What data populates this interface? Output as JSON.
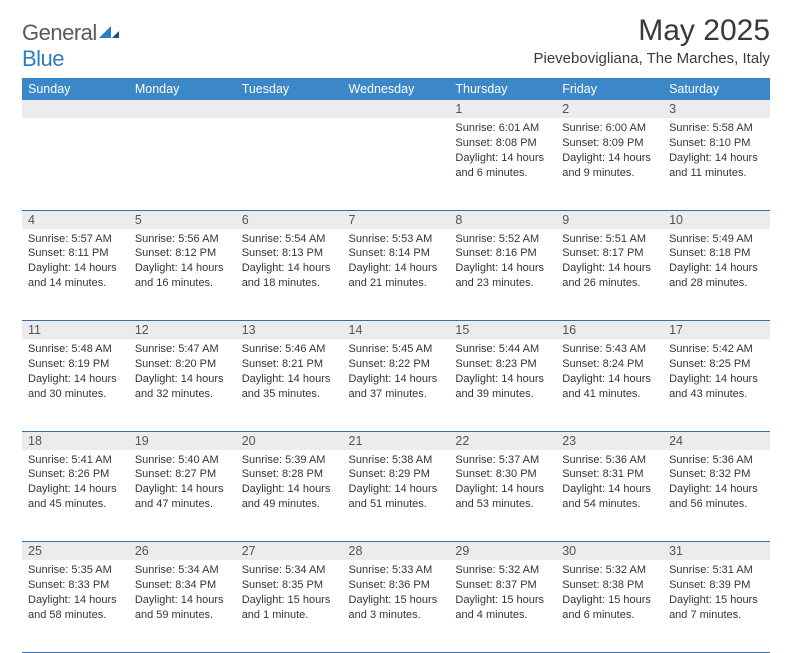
{
  "brand": {
    "part1": "General",
    "part2": "Blue"
  },
  "title": "May 2025",
  "location": "Pievebovigliana, The Marches, Italy",
  "colors": {
    "header_bg": "#3b87c8",
    "header_fg": "#ffffff",
    "daynum_bg": "#ececec",
    "rule": "#3b6fa5",
    "brand_gray": "#5a5a5a",
    "brand_blue": "#2f7bbf"
  },
  "dayHeaders": [
    "Sunday",
    "Monday",
    "Tuesday",
    "Wednesday",
    "Thursday",
    "Friday",
    "Saturday"
  ],
  "weeks": [
    [
      {
        "n": "",
        "lines": []
      },
      {
        "n": "",
        "lines": []
      },
      {
        "n": "",
        "lines": []
      },
      {
        "n": "",
        "lines": []
      },
      {
        "n": "1",
        "lines": [
          "Sunrise: 6:01 AM",
          "Sunset: 8:08 PM",
          "Daylight: 14 hours and 6 minutes."
        ]
      },
      {
        "n": "2",
        "lines": [
          "Sunrise: 6:00 AM",
          "Sunset: 8:09 PM",
          "Daylight: 14 hours and 9 minutes."
        ]
      },
      {
        "n": "3",
        "lines": [
          "Sunrise: 5:58 AM",
          "Sunset: 8:10 PM",
          "Daylight: 14 hours and 11 minutes."
        ]
      }
    ],
    [
      {
        "n": "4",
        "lines": [
          "Sunrise: 5:57 AM",
          "Sunset: 8:11 PM",
          "Daylight: 14 hours and 14 minutes."
        ]
      },
      {
        "n": "5",
        "lines": [
          "Sunrise: 5:56 AM",
          "Sunset: 8:12 PM",
          "Daylight: 14 hours and 16 minutes."
        ]
      },
      {
        "n": "6",
        "lines": [
          "Sunrise: 5:54 AM",
          "Sunset: 8:13 PM",
          "Daylight: 14 hours and 18 minutes."
        ]
      },
      {
        "n": "7",
        "lines": [
          "Sunrise: 5:53 AM",
          "Sunset: 8:14 PM",
          "Daylight: 14 hours and 21 minutes."
        ]
      },
      {
        "n": "8",
        "lines": [
          "Sunrise: 5:52 AM",
          "Sunset: 8:16 PM",
          "Daylight: 14 hours and 23 minutes."
        ]
      },
      {
        "n": "9",
        "lines": [
          "Sunrise: 5:51 AM",
          "Sunset: 8:17 PM",
          "Daylight: 14 hours and 26 minutes."
        ]
      },
      {
        "n": "10",
        "lines": [
          "Sunrise: 5:49 AM",
          "Sunset: 8:18 PM",
          "Daylight: 14 hours and 28 minutes."
        ]
      }
    ],
    [
      {
        "n": "11",
        "lines": [
          "Sunrise: 5:48 AM",
          "Sunset: 8:19 PM",
          "Daylight: 14 hours and 30 minutes."
        ]
      },
      {
        "n": "12",
        "lines": [
          "Sunrise: 5:47 AM",
          "Sunset: 8:20 PM",
          "Daylight: 14 hours and 32 minutes."
        ]
      },
      {
        "n": "13",
        "lines": [
          "Sunrise: 5:46 AM",
          "Sunset: 8:21 PM",
          "Daylight: 14 hours and 35 minutes."
        ]
      },
      {
        "n": "14",
        "lines": [
          "Sunrise: 5:45 AM",
          "Sunset: 8:22 PM",
          "Daylight: 14 hours and 37 minutes."
        ]
      },
      {
        "n": "15",
        "lines": [
          "Sunrise: 5:44 AM",
          "Sunset: 8:23 PM",
          "Daylight: 14 hours and 39 minutes."
        ]
      },
      {
        "n": "16",
        "lines": [
          "Sunrise: 5:43 AM",
          "Sunset: 8:24 PM",
          "Daylight: 14 hours and 41 minutes."
        ]
      },
      {
        "n": "17",
        "lines": [
          "Sunrise: 5:42 AM",
          "Sunset: 8:25 PM",
          "Daylight: 14 hours and 43 minutes."
        ]
      }
    ],
    [
      {
        "n": "18",
        "lines": [
          "Sunrise: 5:41 AM",
          "Sunset: 8:26 PM",
          "Daylight: 14 hours and 45 minutes."
        ]
      },
      {
        "n": "19",
        "lines": [
          "Sunrise: 5:40 AM",
          "Sunset: 8:27 PM",
          "Daylight: 14 hours and 47 minutes."
        ]
      },
      {
        "n": "20",
        "lines": [
          "Sunrise: 5:39 AM",
          "Sunset: 8:28 PM",
          "Daylight: 14 hours and 49 minutes."
        ]
      },
      {
        "n": "21",
        "lines": [
          "Sunrise: 5:38 AM",
          "Sunset: 8:29 PM",
          "Daylight: 14 hours and 51 minutes."
        ]
      },
      {
        "n": "22",
        "lines": [
          "Sunrise: 5:37 AM",
          "Sunset: 8:30 PM",
          "Daylight: 14 hours and 53 minutes."
        ]
      },
      {
        "n": "23",
        "lines": [
          "Sunrise: 5:36 AM",
          "Sunset: 8:31 PM",
          "Daylight: 14 hours and 54 minutes."
        ]
      },
      {
        "n": "24",
        "lines": [
          "Sunrise: 5:36 AM",
          "Sunset: 8:32 PM",
          "Daylight: 14 hours and 56 minutes."
        ]
      }
    ],
    [
      {
        "n": "25",
        "lines": [
          "Sunrise: 5:35 AM",
          "Sunset: 8:33 PM",
          "Daylight: 14 hours and 58 minutes."
        ]
      },
      {
        "n": "26",
        "lines": [
          "Sunrise: 5:34 AM",
          "Sunset: 8:34 PM",
          "Daylight: 14 hours and 59 minutes."
        ]
      },
      {
        "n": "27",
        "lines": [
          "Sunrise: 5:34 AM",
          "Sunset: 8:35 PM",
          "Daylight: 15 hours and 1 minute."
        ]
      },
      {
        "n": "28",
        "lines": [
          "Sunrise: 5:33 AM",
          "Sunset: 8:36 PM",
          "Daylight: 15 hours and 3 minutes."
        ]
      },
      {
        "n": "29",
        "lines": [
          "Sunrise: 5:32 AM",
          "Sunset: 8:37 PM",
          "Daylight: 15 hours and 4 minutes."
        ]
      },
      {
        "n": "30",
        "lines": [
          "Sunrise: 5:32 AM",
          "Sunset: 8:38 PM",
          "Daylight: 15 hours and 6 minutes."
        ]
      },
      {
        "n": "31",
        "lines": [
          "Sunrise: 5:31 AM",
          "Sunset: 8:39 PM",
          "Daylight: 15 hours and 7 minutes."
        ]
      }
    ]
  ]
}
